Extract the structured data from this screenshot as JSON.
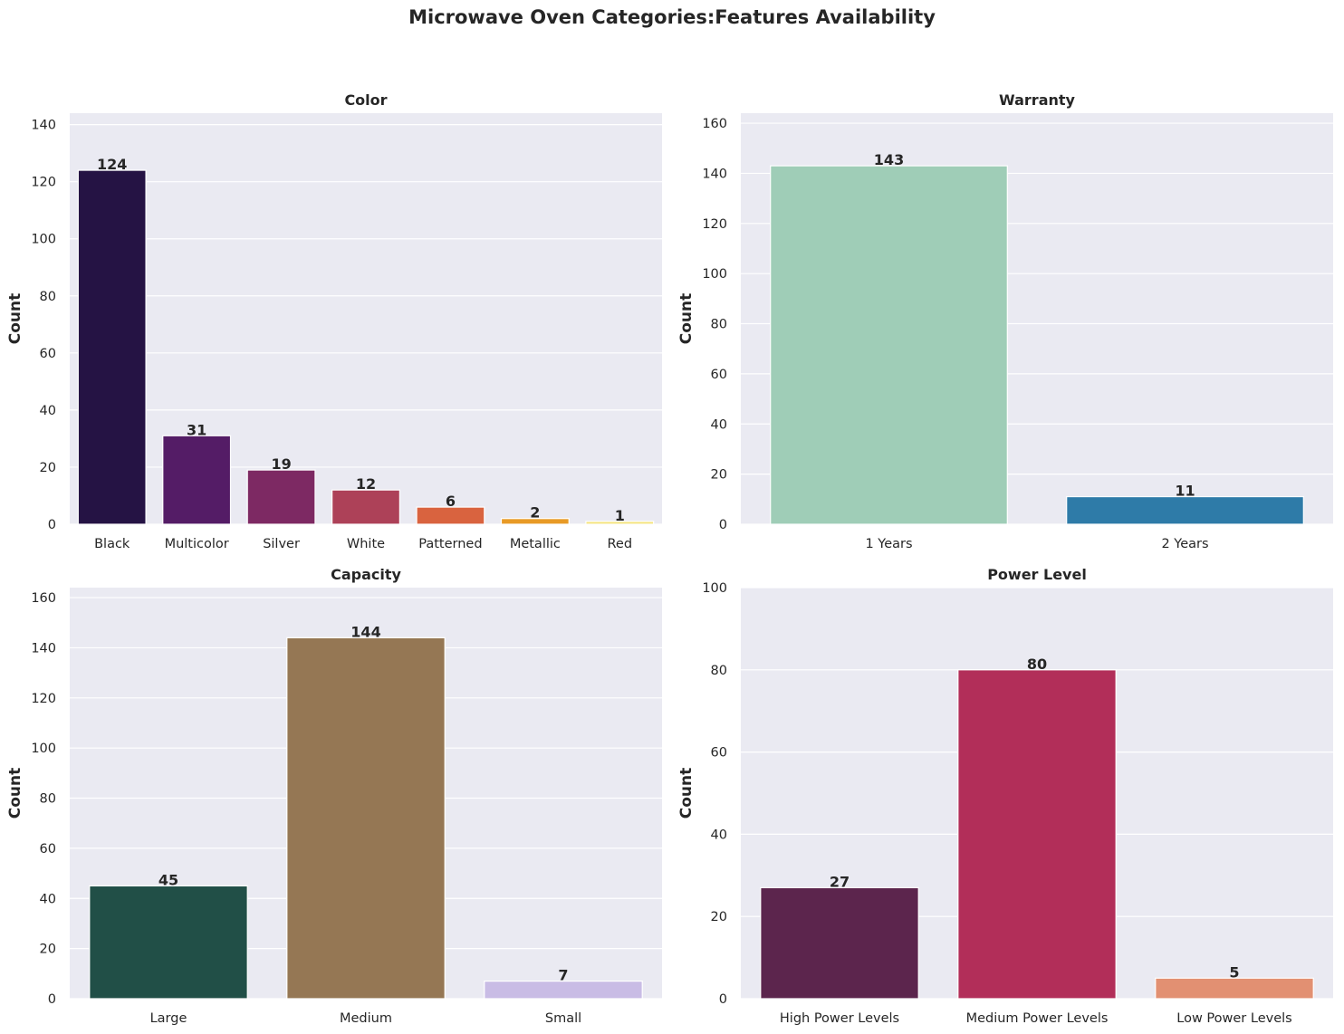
{
  "figure": {
    "title": "Microwave Oven Categories:Features Availability"
  },
  "chart_data": [
    {
      "type": "bar",
      "title": "Color",
      "xlabel": "",
      "ylabel": "Count",
      "categories": [
        "Black",
        "Multicolor",
        "Silver",
        "White",
        "Patterned",
        "Metallic",
        "Red"
      ],
      "values": [
        124,
        31,
        19,
        12,
        6,
        2,
        1
      ],
      "colors": [
        "#251344",
        "#541c66",
        "#7d2963",
        "#ad4158",
        "#d9633f",
        "#e89a26",
        "#f4e47d"
      ],
      "ylim": [
        0,
        144
      ],
      "yticks": [
        0,
        20,
        40,
        60,
        80,
        100,
        120,
        140
      ],
      "grid": true,
      "data_labels": true
    },
    {
      "type": "bar",
      "title": "Warranty",
      "xlabel": "",
      "ylabel": "Count",
      "categories": [
        "1 Years",
        "2 Years"
      ],
      "values": [
        143,
        11
      ],
      "colors": [
        "#9fcdb7",
        "#2e7ba8"
      ],
      "ylim": [
        0,
        164
      ],
      "yticks": [
        0,
        20,
        40,
        60,
        80,
        100,
        120,
        140,
        160
      ],
      "grid": true,
      "data_labels": true
    },
    {
      "type": "bar",
      "title": "Capacity",
      "xlabel": "",
      "ylabel": "Count",
      "categories": [
        "Large",
        "Medium",
        "Small"
      ],
      "values": [
        45,
        144,
        7
      ],
      "colors": [
        "#214f47",
        "#957754",
        "#c9bce5"
      ],
      "ylim": [
        0,
        164
      ],
      "yticks": [
        0,
        20,
        40,
        60,
        80,
        100,
        120,
        140,
        160
      ],
      "grid": true,
      "data_labels": true
    },
    {
      "type": "bar",
      "title": "Power Level",
      "xlabel": "",
      "ylabel": "Count",
      "categories": [
        "High Power Levels",
        "Medium Power Levels",
        "Low Power Levels"
      ],
      "values": [
        27,
        80,
        5
      ],
      "colors": [
        "#5c254d",
        "#b22e59",
        "#e29072"
      ],
      "ylim": [
        0,
        100
      ],
      "yticks": [
        0,
        20,
        40,
        60,
        80,
        100
      ],
      "grid": true,
      "data_labels": true
    }
  ]
}
